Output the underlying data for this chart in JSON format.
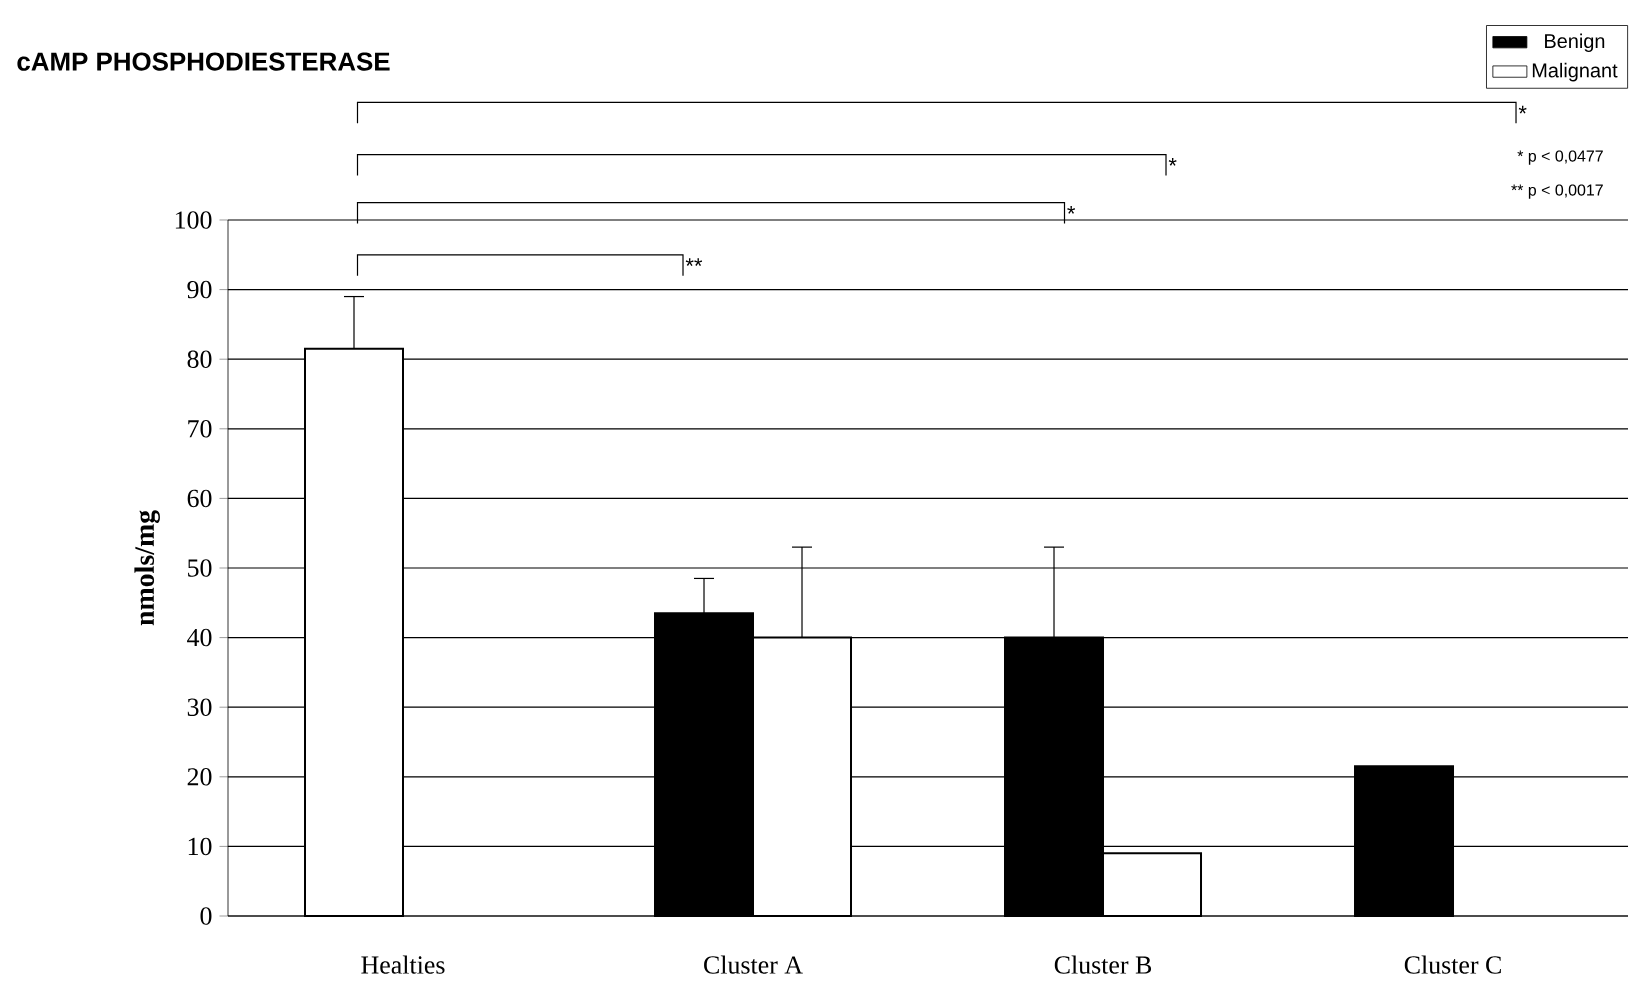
{
  "chart_data": {
    "type": "bar",
    "title": "cAMP PHOSPHODIESTERASE",
    "ylabel": "nmols/mg",
    "categories": [
      "Healties",
      "Cluster A",
      "Cluster B",
      "Cluster C"
    ],
    "series": [
      {
        "name": "Benign",
        "color": "#000000",
        "colors": [
          "#ffffff",
          "#000000",
          "#000000",
          "#000000"
        ],
        "values": [
          81.5,
          43.5,
          40,
          21.5
        ],
        "errors": [
          [
            81.5,
            89
          ],
          [
            43.5,
            48.5
          ],
          [
            40,
            53
          ],
          null
        ]
      },
      {
        "name": "Malignant",
        "color": "#ffffff",
        "values": [
          null,
          40,
          9,
          null
        ],
        "errors": [
          null,
          [
            40,
            53
          ],
          null,
          null
        ]
      }
    ],
    "ylim": [
      0,
      100
    ],
    "yticks": [
      0,
      10,
      20,
      30,
      40,
      50,
      60,
      70,
      80,
      90,
      100
    ],
    "grid": "y",
    "legend": "top right",
    "annotations": [
      "**",
      "*",
      "*",
      "*",
      "* p < 0,0477",
      "** p < 0,0017"
    ]
  }
}
